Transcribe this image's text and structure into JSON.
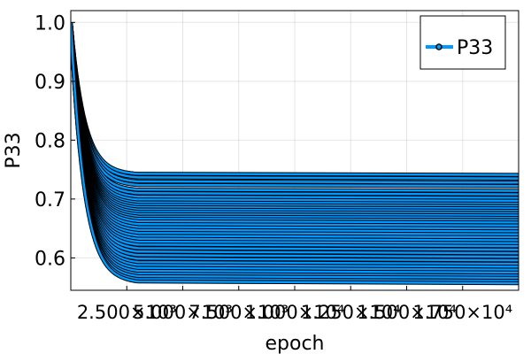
{
  "chart_data": {
    "type": "line",
    "title": "",
    "xlabel": "epoch",
    "ylabel": "P33",
    "xlim": [
      0,
      20000
    ],
    "ylim": [
      0.545,
      1.02
    ],
    "x_ticks": [
      2500,
      5000,
      7500,
      10000,
      12500,
      15000,
      17500
    ],
    "x_tick_labels": [
      "2.500×10³",
      "5.000×10³",
      "7.500×10³",
      "1.000×10⁴",
      "1.250×10⁴",
      "1.500×10⁴",
      "1.750×10⁴"
    ],
    "y_ticks": [
      0.6,
      0.7,
      0.8,
      0.9,
      1.0
    ],
    "y_tick_labels": [
      "0.6",
      "0.7",
      "0.8",
      "0.9",
      "1.0"
    ],
    "grid": true,
    "legend": {
      "position": "top-right",
      "entries": [
        "P33"
      ]
    },
    "series": [
      {
        "name": "P33",
        "color": "#0099ff",
        "marker_color": "#000000",
        "start_value": 1.0,
        "decay_epochs": 600,
        "plateau_values": [
          0.741,
          0.735,
          0.728,
          0.722,
          0.714,
          0.708,
          0.702,
          0.697,
          0.692,
          0.688,
          0.684,
          0.68,
          0.676,
          0.672,
          0.668,
          0.664,
          0.66,
          0.655,
          0.65,
          0.645,
          0.64,
          0.635,
          0.63,
          0.625,
          0.62,
          0.614,
          0.608,
          0.602,
          0.596,
          0.59,
          0.585,
          0.58,
          0.575,
          0.57,
          0.566,
          0.561,
          0.557
        ]
      }
    ]
  }
}
